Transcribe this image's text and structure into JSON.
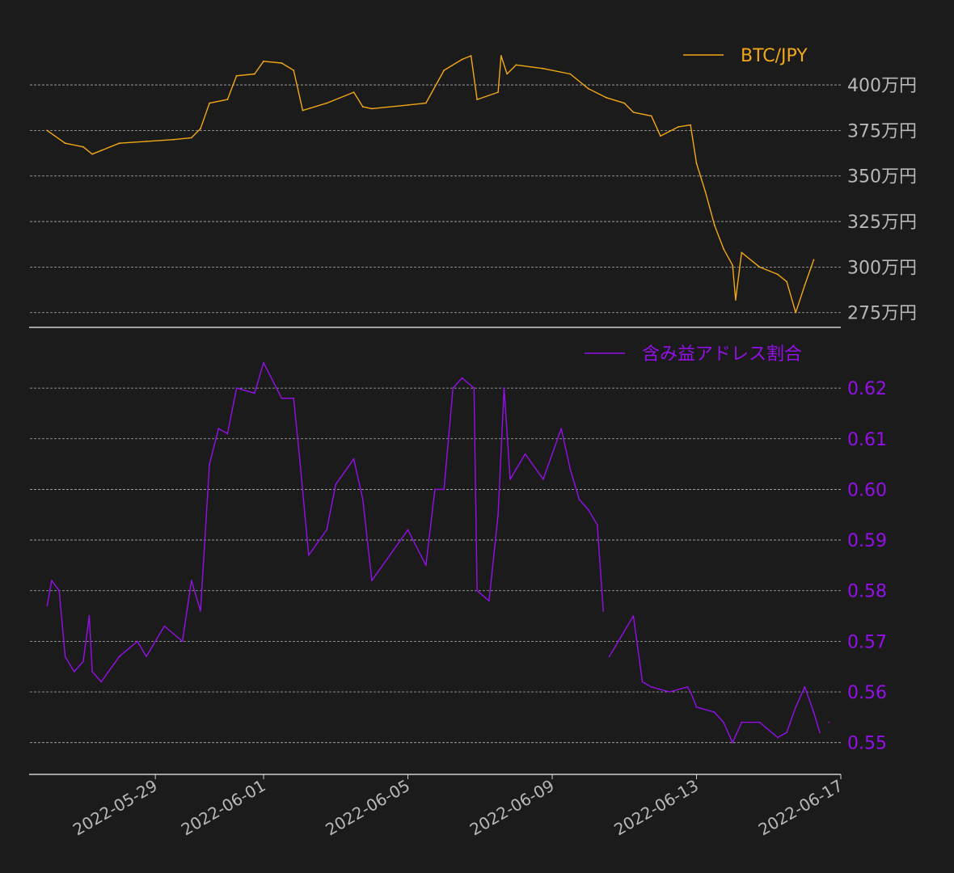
{
  "colors": {
    "background": "#1b1b1b",
    "btc": "#f2a716",
    "ratio": "#9410e8",
    "grid": "#b0b0b0",
    "axis": "#d0d0d0",
    "text_gray": "#b8b8b8"
  },
  "legend": {
    "btc": "BTC/JPY",
    "ratio": "含み益アドレス割合"
  },
  "chart_data": [
    {
      "type": "line",
      "series": [
        {
          "name": "BTC/JPY",
          "points": [
            [
              "2022-05-26T00:00",
              3750000
            ],
            [
              "2022-05-26T12:00",
              3680000
            ],
            [
              "2022-05-27T00:00",
              3660000
            ],
            [
              "2022-05-27T06:00",
              3620000
            ],
            [
              "2022-05-27T12:00",
              3640000
            ],
            [
              "2022-05-28T00:00",
              3680000
            ],
            [
              "2022-05-28T18:00",
              3690000
            ],
            [
              "2022-05-29T12:00",
              3700000
            ],
            [
              "2022-05-30T00:00",
              3710000
            ],
            [
              "2022-05-30T06:00",
              3760000
            ],
            [
              "2022-05-30T12:00",
              3900000
            ],
            [
              "2022-05-31T00:00",
              3920000
            ],
            [
              "2022-05-31T06:00",
              4050000
            ],
            [
              "2022-05-31T18:00",
              4060000
            ],
            [
              "2022-06-01T00:00",
              4130000
            ],
            [
              "2022-06-01T12:00",
              4120000
            ],
            [
              "2022-06-01T20:00",
              4080000
            ],
            [
              "2022-06-02T02:00",
              3860000
            ],
            [
              "2022-06-02T18:00",
              3900000
            ],
            [
              "2022-06-03T12:00",
              3960000
            ],
            [
              "2022-06-03T18:00",
              3880000
            ],
            [
              "2022-06-04T00:00",
              3870000
            ],
            [
              "2022-06-05T00:00",
              3890000
            ],
            [
              "2022-06-05T12:00",
              3900000
            ],
            [
              "2022-06-06T00:00",
              4080000
            ],
            [
              "2022-06-06T12:00",
              4140000
            ],
            [
              "2022-06-06T18:00",
              4160000
            ],
            [
              "2022-06-06T22:00",
              3920000
            ],
            [
              "2022-06-07T12:00",
              3960000
            ],
            [
              "2022-06-07T14:00",
              4160000
            ],
            [
              "2022-06-07T18:00",
              4060000
            ],
            [
              "2022-06-08T00:00",
              4110000
            ],
            [
              "2022-06-08T18:00",
              4090000
            ],
            [
              "2022-06-09T12:00",
              4060000
            ],
            [
              "2022-06-10T00:00",
              3980000
            ],
            [
              "2022-06-10T12:00",
              3930000
            ],
            [
              "2022-06-11T00:00",
              3900000
            ],
            [
              "2022-06-11T06:00",
              3850000
            ],
            [
              "2022-06-11T18:00",
              3830000
            ],
            [
              "2022-06-12T00:00",
              3720000
            ],
            [
              "2022-06-12T12:00",
              3770000
            ],
            [
              "2022-06-12T20:00",
              3780000
            ],
            [
              "2022-06-13T00:00",
              3570000
            ],
            [
              "2022-06-13T06:00",
              3410000
            ],
            [
              "2022-06-13T12:00",
              3230000
            ],
            [
              "2022-06-13T18:00",
              3100000
            ],
            [
              "2022-06-14T00:00",
              3010000
            ],
            [
              "2022-06-14T02:00",
              2820000
            ],
            [
              "2022-06-14T06:00",
              3080000
            ],
            [
              "2022-06-14T18:00",
              3000000
            ],
            [
              "2022-06-15T06:00",
              2960000
            ],
            [
              "2022-06-15T12:00",
              2920000
            ],
            [
              "2022-06-15T18:00",
              2750000
            ],
            [
              "2022-06-16T00:00",
              2900000
            ],
            [
              "2022-06-16T06:00",
              3040000
            ]
          ]
        }
      ],
      "ylim": [
        2700000,
        4200000
      ],
      "yticks": [
        {
          "value": 2750000,
          "label": "275万円"
        },
        {
          "value": 3000000,
          "label": "300万円"
        },
        {
          "value": 3250000,
          "label": "325万円"
        },
        {
          "value": 3500000,
          "label": "350万円"
        },
        {
          "value": 3750000,
          "label": "375万円"
        },
        {
          "value": 4000000,
          "label": "400万円"
        }
      ],
      "grid": true,
      "legend_position": "top-right"
    },
    {
      "type": "line",
      "series": [
        {
          "name": "含み益アドレス割合",
          "points": [
            [
              "2022-05-26T00:00",
              0.577
            ],
            [
              "2022-05-26T03:00",
              0.582
            ],
            [
              "2022-05-26T08:00",
              0.58
            ],
            [
              "2022-05-26T12:00",
              0.567
            ],
            [
              "2022-05-26T18:00",
              0.564
            ],
            [
              "2022-05-27T00:00",
              0.566
            ],
            [
              "2022-05-27T04:00",
              0.575
            ],
            [
              "2022-05-27T06:00",
              0.564
            ],
            [
              "2022-05-27T12:00",
              0.562
            ],
            [
              "2022-05-28T00:00",
              0.567
            ],
            [
              "2022-05-28T12:00",
              0.57
            ],
            [
              "2022-05-28T18:00",
              0.567
            ],
            [
              "2022-05-29T06:00",
              0.573
            ],
            [
              "2022-05-29T18:00",
              0.57
            ],
            [
              "2022-05-30T00:00",
              0.582
            ],
            [
              "2022-05-30T06:00",
              0.576
            ],
            [
              "2022-05-30T12:00",
              0.605
            ],
            [
              "2022-05-30T18:00",
              0.612
            ],
            [
              "2022-05-31T00:00",
              0.611
            ],
            [
              "2022-05-31T06:00",
              0.62
            ],
            [
              "2022-05-31T18:00",
              0.619
            ],
            [
              "2022-06-01T00:00",
              0.625
            ],
            [
              "2022-06-01T12:00",
              0.618
            ],
            [
              "2022-06-01T20:00",
              0.618
            ],
            [
              "2022-06-02T00:00",
              0.606
            ],
            [
              "2022-06-02T06:00",
              0.587
            ],
            [
              "2022-06-02T18:00",
              0.592
            ],
            [
              "2022-06-03T00:00",
              0.601
            ],
            [
              "2022-06-03T12:00",
              0.606
            ],
            [
              "2022-06-03T18:00",
              0.598
            ],
            [
              "2022-06-04T00:00",
              0.582
            ],
            [
              "2022-06-04T12:00",
              0.587
            ],
            [
              "2022-06-05T00:00",
              0.592
            ],
            [
              "2022-06-05T12:00",
              0.585
            ],
            [
              "2022-06-05T18:00",
              0.6
            ],
            [
              "2022-06-06T00:00",
              0.6
            ],
            [
              "2022-06-06T06:00",
              0.62
            ],
            [
              "2022-06-06T12:00",
              0.622
            ],
            [
              "2022-06-06T20:00",
              0.62
            ],
            [
              "2022-06-06T22:00",
              0.58
            ],
            [
              "2022-06-07T06:00",
              0.578
            ],
            [
              "2022-06-07T12:00",
              0.595
            ],
            [
              "2022-06-07T16:00",
              0.62
            ],
            [
              "2022-06-07T20:00",
              0.602
            ],
            [
              "2022-06-08T06:00",
              0.607
            ],
            [
              "2022-06-08T18:00",
              0.602
            ],
            [
              "2022-06-09T06:00",
              0.612
            ],
            [
              "2022-06-09T12:00",
              0.604
            ],
            [
              "2022-06-09T18:00",
              0.598
            ],
            [
              "2022-06-10T00:00",
              0.596
            ],
            [
              "2022-06-10T06:00",
              0.593
            ],
            [
              "2022-06-10T10:00",
              0.576
            ],
            [
              "2022-06-10T12:00",
              null
            ],
            [
              "2022-06-10T14:00",
              0.567
            ],
            [
              "2022-06-10T20:00",
              0.57
            ],
            [
              "2022-06-11T06:00",
              0.575
            ],
            [
              "2022-06-11T12:00",
              0.562
            ],
            [
              "2022-06-11T18:00",
              0.561
            ],
            [
              "2022-06-12T06:00",
              0.56
            ],
            [
              "2022-06-12T18:00",
              0.561
            ],
            [
              "2022-06-12T20:00",
              0.56
            ],
            [
              "2022-06-13T00:00",
              0.557
            ],
            [
              "2022-06-13T12:00",
              0.556
            ],
            [
              "2022-06-13T18:00",
              0.554
            ],
            [
              "2022-06-14T00:00",
              0.55
            ],
            [
              "2022-06-14T06:00",
              0.554
            ],
            [
              "2022-06-14T18:00",
              0.554
            ],
            [
              "2022-06-15T06:00",
              0.551
            ],
            [
              "2022-06-15T12:00",
              0.552
            ],
            [
              "2022-06-15T18:00",
              0.557
            ],
            [
              "2022-06-16T00:00",
              0.561
            ],
            [
              "2022-06-16T06:00",
              0.556
            ],
            [
              "2022-06-16T10:00",
              0.552
            ],
            [
              "2022-06-16T12:00",
              null
            ],
            [
              "2022-06-16T16:00",
              0.554
            ]
          ]
        }
      ],
      "ylim": [
        0.545,
        0.628
      ],
      "yticks": [
        {
          "value": 0.55,
          "label": "0.55"
        },
        {
          "value": 0.56,
          "label": "0.56"
        },
        {
          "value": 0.57,
          "label": "0.57"
        },
        {
          "value": 0.58,
          "label": "0.58"
        },
        {
          "value": 0.59,
          "label": "0.59"
        },
        {
          "value": 0.6,
          "label": "0.60"
        },
        {
          "value": 0.61,
          "label": "0.61"
        },
        {
          "value": 0.62,
          "label": "0.62"
        }
      ],
      "xticks": [
        "2022-05-29",
        "2022-06-01",
        "2022-06-05",
        "2022-06-09",
        "2022-06-13",
        "2022-06-17"
      ],
      "xlim": [
        "2022-05-25T12:00",
        "2022-06-17T00:00"
      ],
      "grid": true,
      "legend_position": "top-right"
    }
  ]
}
